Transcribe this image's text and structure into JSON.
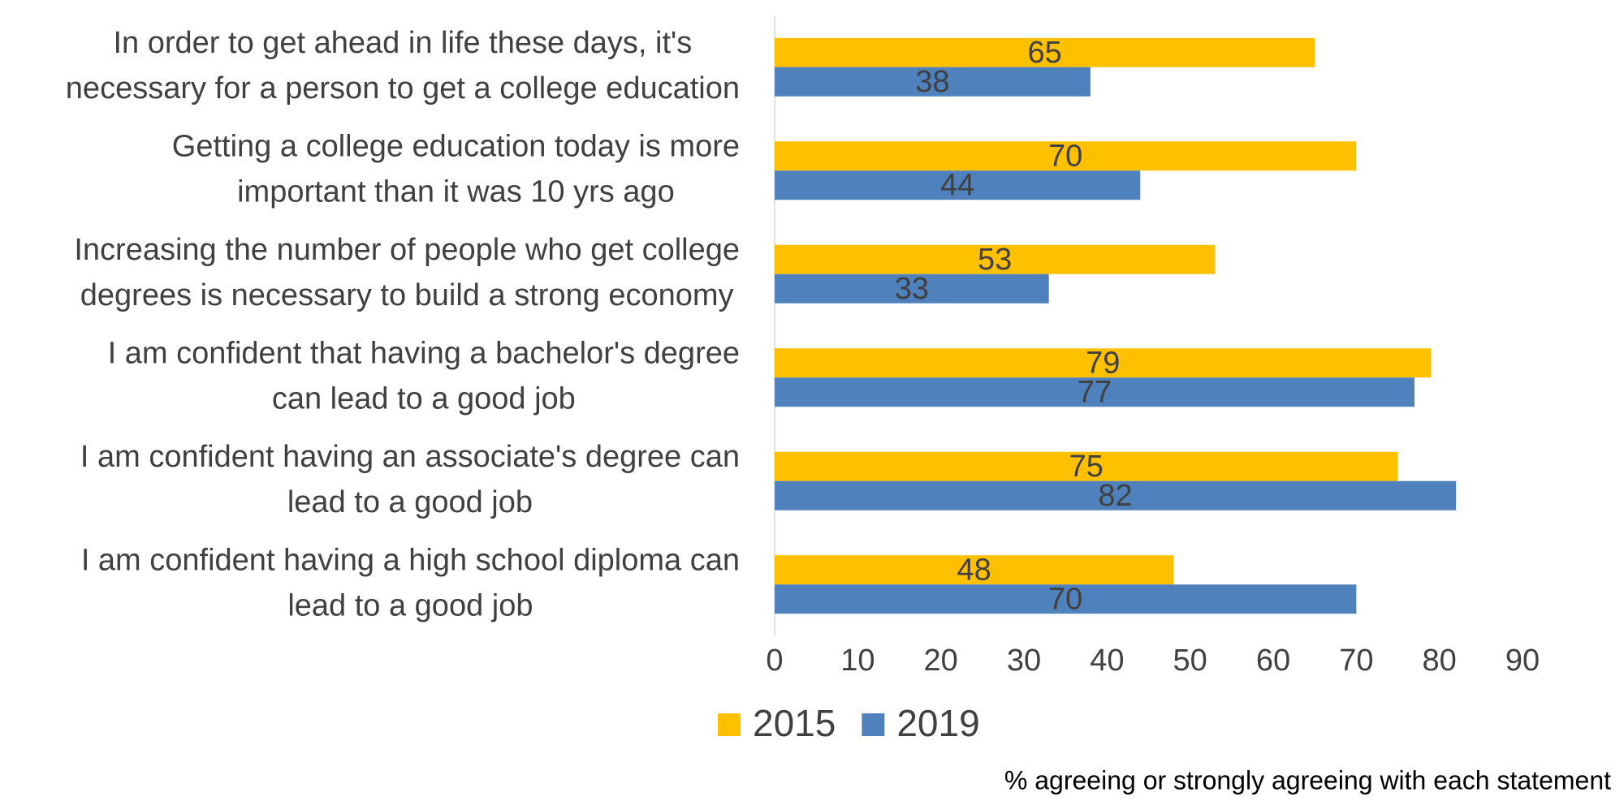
{
  "chart_data": {
    "type": "bar",
    "orientation": "horizontal",
    "categories": [
      [
        "In order to get ahead in life these days, it's",
        "necessary for a person to get a college education"
      ],
      [
        "Getting a college education today is more",
        "important than it was 10 yrs ago"
      ],
      [
        "Increasing the number of people who get college",
        "degrees is necessary to build a strong economy"
      ],
      [
        "I am confident that having a bachelor's degree",
        "can lead to a good job"
      ],
      [
        "I am confident having an associate's degree can",
        "lead to a good job"
      ],
      [
        "I am confident having a high school diploma can",
        "lead to a good job"
      ]
    ],
    "series": [
      {
        "name": "2015",
        "color": "#ffc000",
        "values": [
          65,
          70,
          53,
          79,
          75,
          48
        ]
      },
      {
        "name": "2019",
        "color": "#4f81bd",
        "values": [
          38,
          44,
          33,
          77,
          82,
          70
        ]
      }
    ],
    "xlim": [
      0,
      90
    ],
    "xticks": [
      0,
      10,
      20,
      30,
      40,
      50,
      60,
      70,
      80,
      90
    ],
    "x_label": "% agreeing or strongly agreeing with each statement",
    "grid": false
  }
}
